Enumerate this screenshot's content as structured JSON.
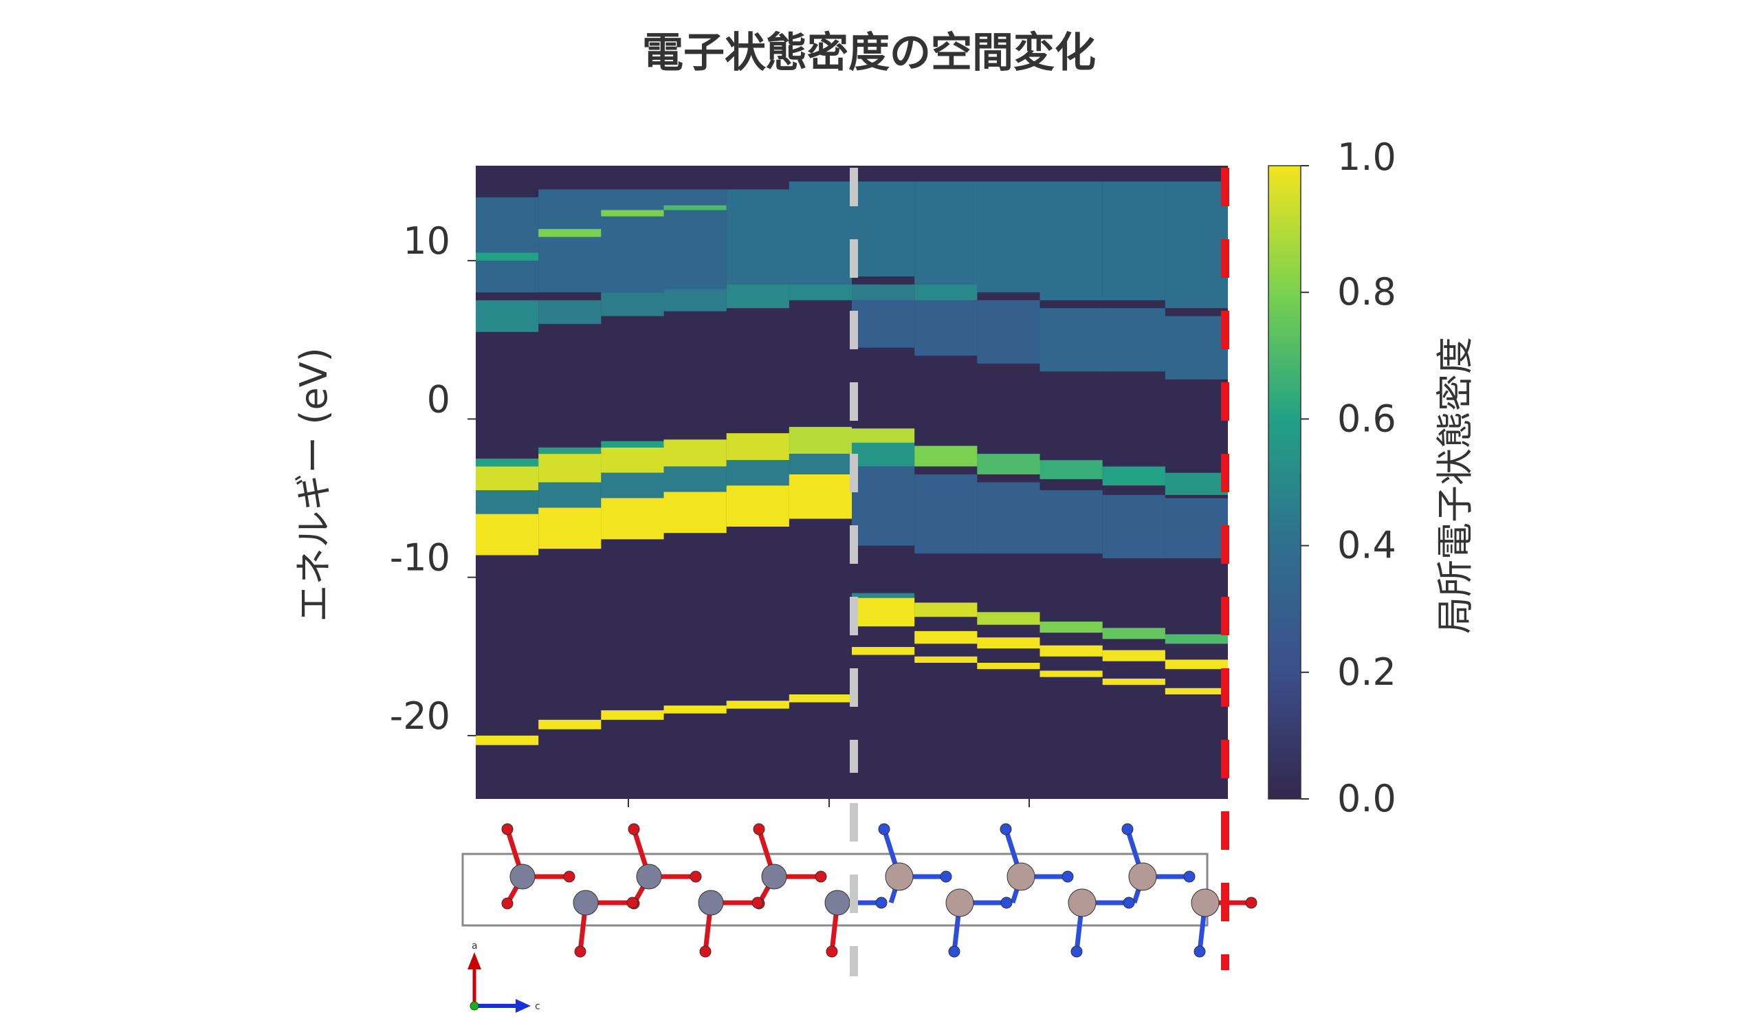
{
  "chart_data": {
    "type": "heatmap",
    "title": "電子状態密度の空間変化",
    "xlabel": "",
    "ylabel": "エネルギー (eV)",
    "ylim": [
      -24,
      16
    ],
    "yticks": [
      10,
      0,
      -10,
      -20
    ],
    "ytick_labels": [
      "10",
      "0",
      "-10",
      "-20"
    ],
    "colorbar": {
      "label": "局所電子状態密度",
      "range": [
        0.0,
        1.0
      ],
      "ticks": [
        1.0,
        0.8,
        0.6,
        0.4,
        0.2,
        0.0
      ],
      "tick_labels": [
        "1.0",
        "0.8",
        "0.6",
        "0.4",
        "0.2",
        "0.0"
      ],
      "colormap": [
        "#33274d",
        "#3b4f8a",
        "#2f6f8e",
        "#22a185",
        "#7ad151",
        "#f2e41e"
      ]
    },
    "background_value": 0.02,
    "interface_column": 6,
    "columns": [
      {
        "region": "oxide",
        "bands": [
          [
            -20.6,
            -20.0,
            1.0
          ],
          [
            -8.6,
            -6.0,
            1.0
          ],
          [
            -6.0,
            -4.5,
            0.45
          ],
          [
            -4.5,
            -3.0,
            0.95
          ],
          [
            -3.0,
            -2.5,
            0.6
          ],
          [
            5.5,
            7.5,
            0.5
          ],
          [
            8.0,
            14.0,
            0.35
          ],
          [
            10.0,
            10.5,
            0.6
          ]
        ]
      },
      {
        "region": "oxide",
        "bands": [
          [
            -19.6,
            -19.0,
            1.0
          ],
          [
            -8.2,
            -5.6,
            1.0
          ],
          [
            -5.6,
            -4.0,
            0.45
          ],
          [
            -4.0,
            -2.2,
            0.95
          ],
          [
            -2.2,
            -1.8,
            0.6
          ],
          [
            6.0,
            7.5,
            0.45
          ],
          [
            8.0,
            14.5,
            0.35
          ],
          [
            11.5,
            12.0,
            0.8
          ]
        ]
      },
      {
        "region": "oxide",
        "bands": [
          [
            -19.0,
            -18.4,
            1.0
          ],
          [
            -7.6,
            -5.0,
            1.0
          ],
          [
            -5.0,
            -3.4,
            0.45
          ],
          [
            -3.4,
            -1.8,
            0.95
          ],
          [
            -1.8,
            -1.4,
            0.6
          ],
          [
            6.5,
            8.0,
            0.45
          ],
          [
            8.0,
            14.5,
            0.35
          ],
          [
            12.8,
            13.2,
            0.8
          ]
        ]
      },
      {
        "region": "oxide",
        "bands": [
          [
            -18.6,
            -18.1,
            1.0
          ],
          [
            -7.2,
            -4.6,
            1.0
          ],
          [
            -4.6,
            -3.0,
            0.45
          ],
          [
            -3.0,
            -1.3,
            0.95
          ],
          [
            6.8,
            8.2,
            0.45
          ],
          [
            8.2,
            14.5,
            0.35
          ],
          [
            13.2,
            13.5,
            0.7
          ]
        ]
      },
      {
        "region": "oxide",
        "bands": [
          [
            -18.3,
            -17.8,
            1.0
          ],
          [
            -6.8,
            -4.2,
            1.0
          ],
          [
            -4.2,
            -2.6,
            0.45
          ],
          [
            -2.6,
            -0.9,
            0.95
          ],
          [
            7.0,
            8.5,
            0.5
          ],
          [
            8.5,
            14.5,
            0.4
          ]
        ]
      },
      {
        "region": "oxide",
        "bands": [
          [
            -17.9,
            -17.4,
            1.0
          ],
          [
            -6.3,
            -3.5,
            1.0
          ],
          [
            -3.5,
            -2.2,
            0.45
          ],
          [
            -2.2,
            -0.5,
            0.9
          ],
          [
            7.5,
            8.5,
            0.5
          ],
          [
            8.5,
            15.0,
            0.4
          ]
        ]
      },
      {
        "region": "nitride",
        "bands": [
          [
            -14.9,
            -14.4,
            1.0
          ],
          [
            -13.1,
            -11.3,
            1.0
          ],
          [
            -11.3,
            -11.0,
            0.5
          ],
          [
            -8.0,
            -3.0,
            0.3
          ],
          [
            -3.0,
            -1.5,
            0.55
          ],
          [
            -1.5,
            -0.6,
            0.9
          ],
          [
            4.5,
            7.5,
            0.3
          ],
          [
            7.5,
            8.5,
            0.45
          ],
          [
            9.0,
            15.0,
            0.4
          ]
        ]
      },
      {
        "region": "nitride",
        "bands": [
          [
            -15.4,
            -15.0,
            1.0
          ],
          [
            -14.2,
            -13.4,
            1.0
          ],
          [
            -12.5,
            -11.6,
            0.95
          ],
          [
            -8.5,
            -3.5,
            0.3
          ],
          [
            -3.0,
            -1.7,
            0.8
          ],
          [
            4.0,
            7.5,
            0.3
          ],
          [
            7.5,
            8.5,
            0.5
          ],
          [
            8.5,
            15.0,
            0.4
          ]
        ]
      },
      {
        "region": "nitride",
        "bands": [
          [
            -15.8,
            -15.4,
            1.0
          ],
          [
            -14.5,
            -13.8,
            1.0
          ],
          [
            -13.0,
            -12.2,
            0.9
          ],
          [
            -8.5,
            -4.0,
            0.3
          ],
          [
            -3.5,
            -2.2,
            0.7
          ],
          [
            3.5,
            7.5,
            0.3
          ],
          [
            8.0,
            15.0,
            0.4
          ]
        ]
      },
      {
        "region": "nitride",
        "bands": [
          [
            -16.3,
            -15.9,
            1.0
          ],
          [
            -15.0,
            -14.3,
            1.0
          ],
          [
            -13.5,
            -12.8,
            0.8
          ],
          [
            -8.5,
            -4.5,
            0.3
          ],
          [
            -3.8,
            -2.6,
            0.65
          ],
          [
            3.0,
            7.0,
            0.35
          ],
          [
            7.5,
            15.0,
            0.4
          ]
        ]
      },
      {
        "region": "nitride",
        "bands": [
          [
            -16.8,
            -16.4,
            1.0
          ],
          [
            -15.3,
            -14.6,
            1.0
          ],
          [
            -13.9,
            -13.2,
            0.75
          ],
          [
            -8.8,
            -4.8,
            0.3
          ],
          [
            -4.2,
            -3.0,
            0.6
          ],
          [
            3.0,
            7.0,
            0.35
          ],
          [
            7.5,
            15.0,
            0.4
          ]
        ]
      },
      {
        "region": "nitride",
        "bands": [
          [
            -17.4,
            -17.0,
            1.0
          ],
          [
            -15.8,
            -15.2,
            1.0
          ],
          [
            -14.2,
            -13.6,
            0.7
          ],
          [
            -8.8,
            -5.0,
            0.3
          ],
          [
            -4.8,
            -3.4,
            0.55
          ],
          [
            2.5,
            6.5,
            0.35
          ],
          [
            7.0,
            15.0,
            0.4
          ]
        ]
      }
    ],
    "structure_axes": {
      "vertical": "a",
      "horizontal": "c"
    },
    "marker_colors": {
      "interface": "#c8c8c8",
      "boundary": "#e8141c"
    }
  }
}
